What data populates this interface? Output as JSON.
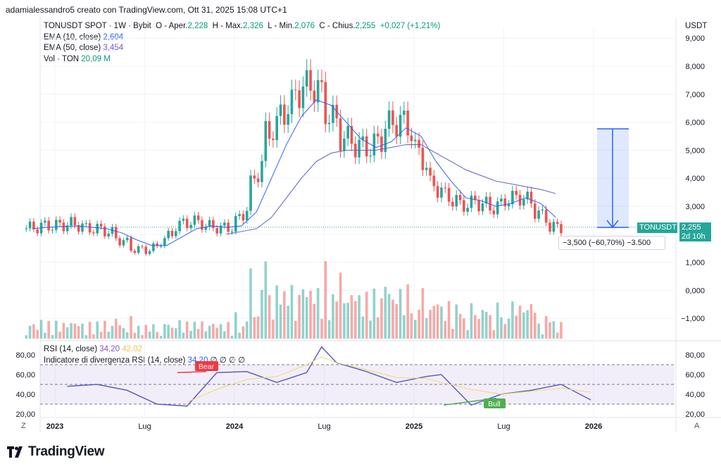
{
  "header": {
    "creator": "adamialessandro5 creato con TradingView.com, Ott 31, 2025 15:08 UTC+1"
  },
  "symbol": {
    "title": "TONUSDT SPOT · 1W · Bybit",
    "open_label": "O - Aper.",
    "open": "2,228",
    "high_label": "H - Max.",
    "high": "2,326",
    "low_label": "L - Min.",
    "low": "2,076",
    "close_label": "C - Chius.",
    "close": "2,255",
    "change": "+0,027 (+1,21%)"
  },
  "indicators": {
    "ema10_label": "EMA (10, close)",
    "ema10_value": "2,604",
    "ema50_label": "EMA (50, close)",
    "ema50_value": "3,454",
    "vol_label": "Vol · TON",
    "vol_value": "20,09 M",
    "rsi_label": "RSI (14, close)",
    "rsi_value": "34,20",
    "rsi_ma_value": "42,02",
    "div_label": "Indicatore di divergenza RSI (14, close)",
    "div_value": "34,20",
    "div_nulls": "∅ ∅ ∅ ∅"
  },
  "axis": {
    "currency": "USDT",
    "price_ticks": [
      "9,000",
      "8,000",
      "7,000",
      "6,000",
      "5,000",
      "4,000",
      "3,000",
      "2,000",
      "1,000",
      "0,000",
      "−1,000"
    ],
    "rsi_ticks": [
      "80,00",
      "60,00",
      "40,00",
      "20,00"
    ],
    "time_ticks": [
      "2023",
      "Lug",
      "2024",
      "Lug",
      "2025",
      "Lug",
      "2026"
    ],
    "z_label": "Z",
    "a_label": "A"
  },
  "price_tag": {
    "symbol": "TONUSDT",
    "price": "2,255",
    "countdown": "2d 10h",
    "color": "#26a69a"
  },
  "measure": {
    "label": "−3,500 (−60,70%) −3.500",
    "color": "#2962ff"
  },
  "rsi_marks": {
    "bear": "Bear",
    "bull": "Bull",
    "bear_color": "#f23645",
    "bull_color": "#4caf50"
  },
  "colors": {
    "up": "#26a69a",
    "down": "#ef5350",
    "ema10": "#2962ff",
    "ema50": "#5b5fc7",
    "rsi": "#5b5fc7",
    "rsi_ma": "#f2d96b"
  },
  "branding": {
    "name": "TradingView",
    "icon": "tradingview-logo-icon"
  },
  "chart_data": [
    {
      "type": "candlestick",
      "title": "TONUSDT SPOT · 1W · Bybit",
      "xlabel": "",
      "ylabel": "",
      "y_axis_range": [
        -1.5,
        9.5
      ],
      "x_range": [
        "2022-11",
        "2026-03"
      ],
      "ohlc_last": {
        "open": 2.228,
        "high": 2.326,
        "low": 2.076,
        "close": 2.255
      },
      "x": [
        "2022-11",
        "2022-12",
        "2023-01",
        "2023-02",
        "2023-03",
        "2023-04",
        "2023-05",
        "2023-06",
        "2023-07",
        "2023-08",
        "2023-09",
        "2023-10",
        "2023-11",
        "2023-12",
        "2024-01",
        "2024-02",
        "2024-03",
        "2024-04",
        "2024-05",
        "2024-06",
        "2024-07",
        "2024-08",
        "2024-09",
        "2024-10",
        "2024-11",
        "2024-12",
        "2025-01",
        "2025-02",
        "2025-03",
        "2025-04",
        "2025-05",
        "2025-06",
        "2025-07",
        "2025-08",
        "2025-09",
        "2025-10"
      ],
      "close": [
        2.2,
        2.3,
        2.3,
        2.4,
        2.2,
        2.2,
        1.9,
        1.5,
        1.4,
        1.7,
        2.3,
        2.5,
        2.3,
        2.2,
        2.3,
        3.5,
        5.5,
        6.2,
        7.0,
        7.5,
        6.5,
        5.5,
        5.2,
        5.0,
        5.8,
        6.2,
        5.2,
        3.8,
        3.4,
        3.0,
        3.2,
        2.9,
        3.2,
        3.4,
        2.9,
        2.255
      ],
      "series": [
        {
          "name": "EMA (10, close)",
          "values": [
            2.2,
            2.25,
            2.28,
            2.3,
            2.25,
            2.2,
            2.05,
            1.8,
            1.6,
            1.6,
            1.9,
            2.2,
            2.3,
            2.25,
            2.3,
            2.8,
            4.0,
            5.2,
            6.2,
            6.8,
            6.6,
            6.0,
            5.4,
            5.1,
            5.3,
            5.8,
            5.5,
            4.6,
            3.9,
            3.3,
            3.2,
            3.0,
            3.1,
            3.3,
            3.1,
            2.604
          ]
        },
        {
          "name": "EMA (50, close)",
          "values": [
            null,
            null,
            null,
            null,
            null,
            null,
            null,
            null,
            null,
            null,
            null,
            null,
            null,
            2.0,
            2.1,
            2.2,
            2.6,
            3.3,
            4.0,
            4.6,
            4.9,
            5.0,
            5.0,
            5.0,
            5.1,
            5.2,
            5.2,
            4.9,
            4.6,
            4.3,
            4.1,
            3.9,
            3.8,
            3.7,
            3.6,
            3.454
          ]
        }
      ],
      "legend_position": "top-left"
    },
    {
      "type": "bar",
      "title": "Vol · TON",
      "last_value": "20,09 M",
      "note": "volume histogram"
    },
    {
      "type": "line",
      "title": "RSI (14, close)",
      "y_axis_range": [
        20,
        90
      ],
      "bands": [
        30,
        50,
        70
      ],
      "x": [
        "2022-11",
        "2023-01",
        "2023-03",
        "2023-05",
        "2023-07",
        "2023-09",
        "2023-11",
        "2024-01",
        "2024-03",
        "2024-04",
        "2024-05",
        "2024-07",
        "2024-09",
        "2024-11",
        "2024-12",
        "2025-02",
        "2025-04",
        "2025-06",
        "2025-08",
        "2025-10"
      ],
      "series": [
        {
          "name": "RSI (14, close)",
          "values": [
            48,
            50,
            44,
            30,
            28,
            62,
            63,
            52,
            62,
            88,
            72,
            63,
            52,
            58,
            60,
            29,
            40,
            44,
            50,
            34.2
          ]
        },
        {
          "name": "RSI MA",
          "values": [
            null,
            null,
            null,
            null,
            32,
            45,
            55,
            58,
            70,
            78,
            72,
            65,
            57,
            56,
            52,
            45,
            40,
            43,
            46,
            42.02
          ]
        }
      ]
    }
  ]
}
